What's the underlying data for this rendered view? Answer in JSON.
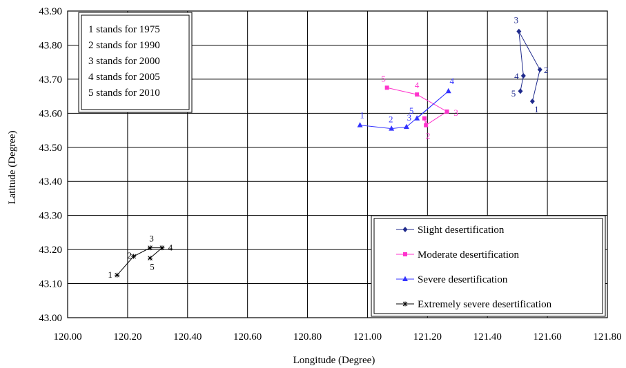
{
  "chart_data": {
    "type": "scatter",
    "title": "",
    "xlabel": "Longitude (Degree)",
    "ylabel": "Latitude (Degree)",
    "xlim": [
      120.0,
      121.8
    ],
    "ylim": [
      43.0,
      43.9
    ],
    "x_ticks": [
      "120.00",
      "120.20",
      "120.40",
      "120.60",
      "120.80",
      "121.00",
      "121.20",
      "121.40",
      "121.60",
      "121.80"
    ],
    "y_ticks": [
      "43.00",
      "43.10",
      "43.20",
      "43.30",
      "43.40",
      "43.50",
      "43.60",
      "43.70",
      "43.80",
      "43.90"
    ],
    "grid": true,
    "legend_position": "bottom-right",
    "year_key": {
      "position": "top-left",
      "lines": [
        "1 stands for 1975",
        "2 stands for 1990",
        "3 stands for 2000",
        "4 stands for 2005",
        "5 stands for 2010"
      ]
    },
    "series": [
      {
        "name": "Slight desertification",
        "color": "#1f2a8c",
        "marker": "diamond",
        "labels": [
          "1",
          "2",
          "3",
          "4",
          "5"
        ],
        "x": [
          121.55,
          121.575,
          121.505,
          121.52,
          121.51
        ],
        "y": [
          43.635,
          43.728,
          43.84,
          43.71,
          43.665
        ]
      },
      {
        "name": "Moderate desertification",
        "color": "#ff33cc",
        "marker": "square",
        "labels": [
          "1",
          "2",
          "3",
          "4",
          "5"
        ],
        "x": [
          121.19,
          121.195,
          121.265,
          121.165,
          121.065
        ],
        "y": [
          43.585,
          43.565,
          43.605,
          43.655,
          43.675
        ]
      },
      {
        "name": "Severe desertification",
        "color": "#3333ff",
        "marker": "triangle",
        "labels": [
          "1",
          "2",
          "3",
          "4",
          "5"
        ],
        "x": [
          120.975,
          121.08,
          121.13,
          121.27,
          121.165
        ],
        "y": [
          43.565,
          43.555,
          43.56,
          43.665,
          43.585
        ]
      },
      {
        "name": "Extremely severe desertification",
        "color": "#000000",
        "marker": "star",
        "labels": [
          "1",
          "2",
          "3",
          "4",
          "5"
        ],
        "x": [
          120.165,
          120.22,
          120.275,
          120.315,
          120.275
        ],
        "y": [
          43.125,
          43.18,
          43.205,
          43.205,
          43.175
        ]
      }
    ]
  }
}
